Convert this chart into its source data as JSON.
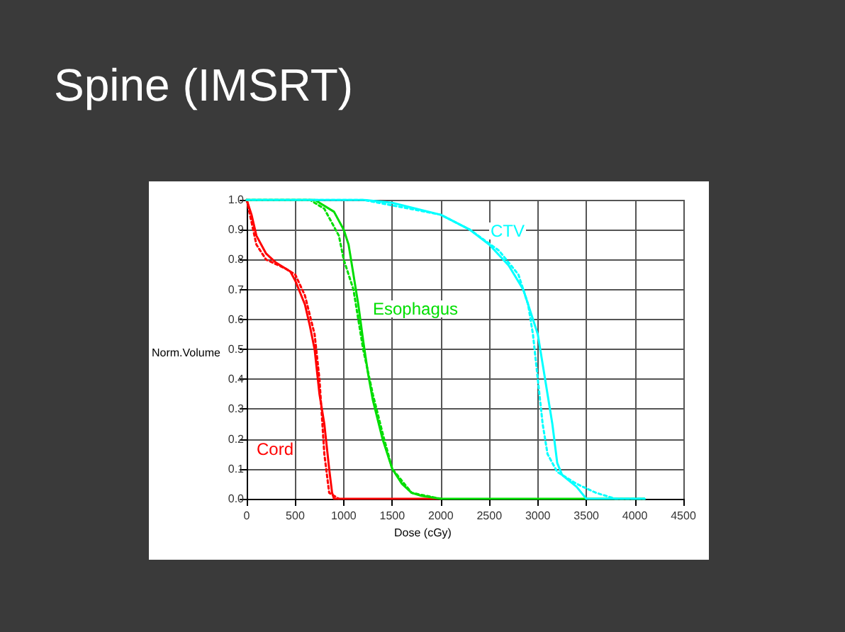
{
  "chart_data": {
    "type": "line",
    "title": "Spine (IMSRT)",
    "xlabel": "Dose (cGy)",
    "ylabel": "Norm.Volume",
    "xlim": [
      0,
      4500
    ],
    "xticks": [
      0,
      500,
      1000,
      1500,
      2000,
      2500,
      3000,
      3500,
      4000,
      4500
    ],
    "ylim": [
      0,
      1
    ],
    "yticks": [
      {
        "value": 0,
        "label": "0.0"
      },
      {
        "value": 0.1,
        "label": "0.1"
      },
      {
        "value": 0.2,
        "label": "0.2"
      },
      {
        "value": 0.3,
        "label": "0.3"
      },
      {
        "value": 0.4,
        "label": "0.4"
      },
      {
        "value": 0.5,
        "label": "0.5"
      },
      {
        "value": 0.6,
        "label": "0.6"
      },
      {
        "value": 0.7,
        "label": "0.7"
      },
      {
        "value": 0.8,
        "label": "0.8"
      },
      {
        "value": 0.9,
        "label": "0.9"
      },
      {
        "value": 1,
        "label": "1.0"
      }
    ],
    "grid": true,
    "marker": "none",
    "series": [
      {
        "color": "#ff0000",
        "line_style": "solid",
        "x": [
          0,
          50,
          100,
          200,
          300,
          450,
          500,
          600,
          650,
          700,
          750,
          800,
          850,
          880,
          900,
          2000
        ],
        "values": [
          1,
          0.95,
          0.88,
          0.82,
          0.79,
          0.76,
          0.73,
          0.65,
          0.58,
          0.5,
          0.35,
          0.25,
          0.1,
          0.02,
          0,
          0
        ]
      },
      {
        "color": "#ff0000",
        "line_style": "dotted",
        "x": [
          0,
          100,
          200,
          400,
          500,
          600,
          700,
          750,
          800,
          850,
          950
        ],
        "values": [
          1,
          0.85,
          0.8,
          0.77,
          0.75,
          0.68,
          0.55,
          0.4,
          0.15,
          0.02,
          0
        ]
      },
      {
        "color": "#00dd00",
        "line_style": "solid",
        "x": [
          0,
          700,
          900,
          1000,
          1050,
          1100,
          1150,
          1200,
          1250,
          1300,
          1400,
          1500,
          1600,
          1700,
          1800,
          2000,
          4100
        ],
        "values": [
          1,
          1,
          0.96,
          0.9,
          0.85,
          0.75,
          0.65,
          0.53,
          0.42,
          0.33,
          0.2,
          0.1,
          0.05,
          0.02,
          0.01,
          0,
          0
        ]
      },
      {
        "color": "#00dd00",
        "line_style": "dotted",
        "x": [
          0,
          650,
          800,
          950,
          1000,
          1100,
          1150,
          1200,
          1300,
          1400,
          1500,
          1700,
          2000
        ],
        "values": [
          1,
          1,
          0.97,
          0.88,
          0.8,
          0.7,
          0.6,
          0.5,
          0.35,
          0.22,
          0.1,
          0.02,
          0
        ]
      },
      {
        "color": "#00ffff",
        "line_style": "solid",
        "x": [
          0,
          1200,
          1500,
          2000,
          2300,
          2500,
          2700,
          2850,
          2950,
          3000,
          3050,
          3100,
          3150,
          3200,
          3250,
          3400,
          3500,
          4100
        ],
        "values": [
          1,
          1,
          0.99,
          0.95,
          0.9,
          0.85,
          0.78,
          0.7,
          0.6,
          0.55,
          0.45,
          0.35,
          0.25,
          0.12,
          0.08,
          0.04,
          0,
          0
        ]
      },
      {
        "color": "#00ffff",
        "line_style": "dotted",
        "x": [
          0,
          1200,
          2000,
          2300,
          2600,
          2800,
          2900,
          2950,
          3000,
          3050,
          3100,
          3200,
          3400,
          3600,
          3800,
          4100
        ],
        "values": [
          1,
          1,
          0.95,
          0.9,
          0.83,
          0.75,
          0.65,
          0.55,
          0.4,
          0.25,
          0.15,
          0.09,
          0.05,
          0.02,
          0,
          0
        ]
      }
    ],
    "annotations": [
      "Cord",
      "Esophagus",
      "CTV"
    ]
  }
}
